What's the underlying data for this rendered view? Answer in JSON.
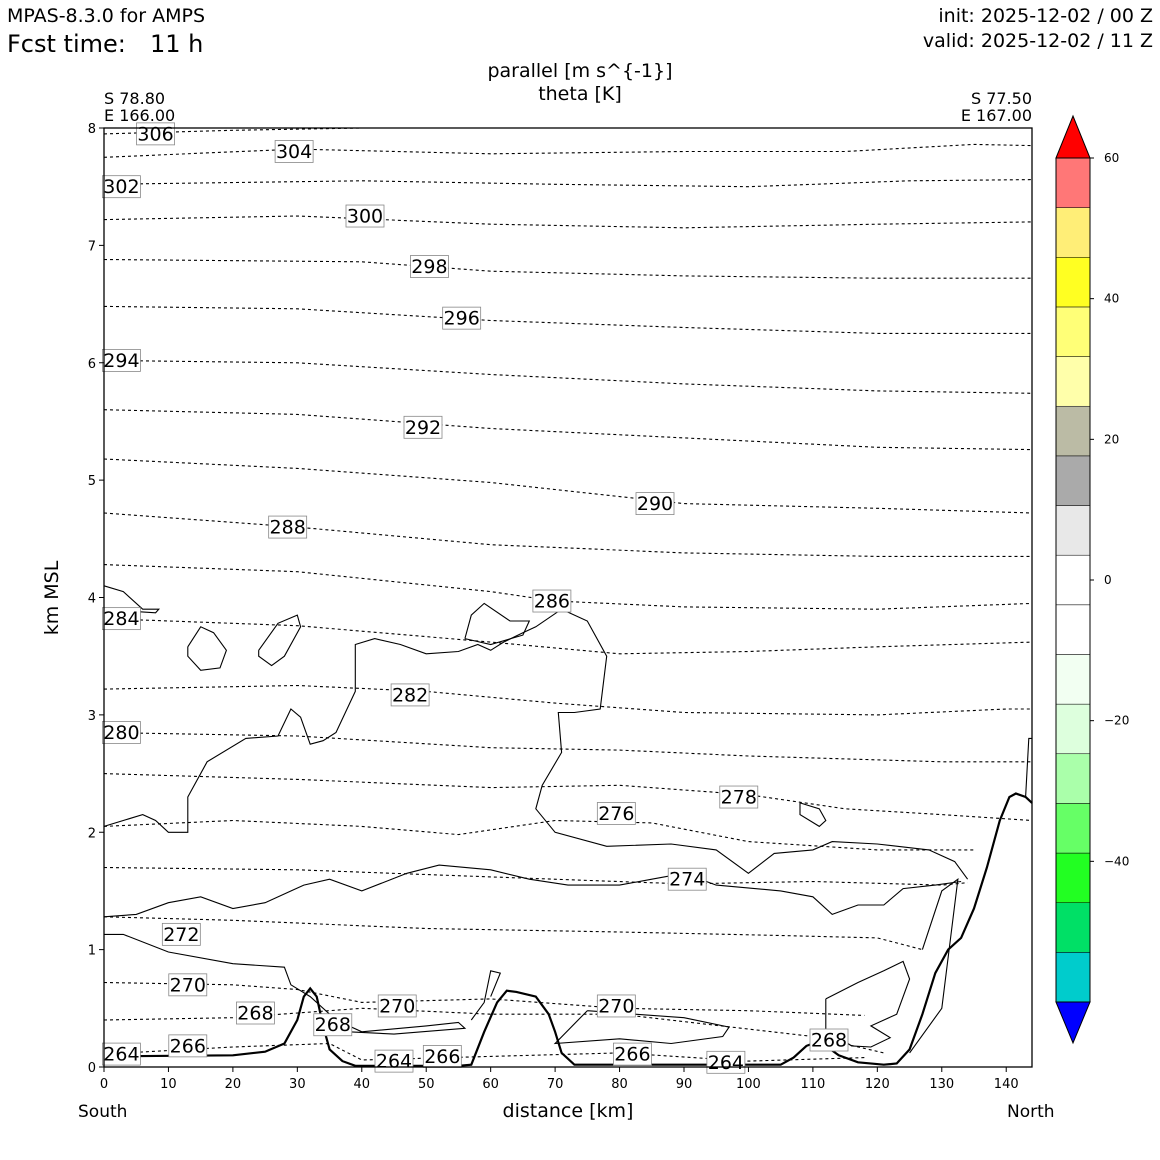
{
  "header": {
    "model": "MPAS-8.3.0 for AMPS",
    "fcst_label": "Fcst time:",
    "fcst_value": "11 h",
    "init": "init: 2025-12-02 / 00 Z",
    "valid": "valid: 2025-12-02 / 11 Z"
  },
  "chart_data": {
    "type": "contour cross-section",
    "title_line1": "parallel [m s^{-1}]",
    "title_line2": "theta [K]",
    "xlabel": "distance [km]",
    "ylabel": "km MSL",
    "xlim": [
      0,
      144
    ],
    "ylim": [
      0,
      8
    ],
    "x_ticks": [
      "0",
      "10",
      "20",
      "30",
      "40",
      "50",
      "60",
      "70",
      "80",
      "90",
      "100",
      "110",
      "120",
      "130",
      "140"
    ],
    "y_ticks": [
      "0",
      "1",
      "2",
      "3",
      "4",
      "5",
      "6",
      "7",
      "8"
    ],
    "endpoints": {
      "left_lat": "S 78.80",
      "left_lon": "E 166.00",
      "right_lat": "S 77.50",
      "right_lon": "E 167.00",
      "left_dir": "South",
      "right_dir": "North"
    },
    "theta_labels": [
      {
        "text": "306",
        "x": 8,
        "y": 7.95
      },
      {
        "text": "304",
        "x": 29.5,
        "y": 7.8
      },
      {
        "text": "302",
        "x": 2.7,
        "y": 7.5
      },
      {
        "text": "300",
        "x": 40.5,
        "y": 7.25
      },
      {
        "text": "298",
        "x": 50.5,
        "y": 6.82
      },
      {
        "text": "296",
        "x": 55.5,
        "y": 6.38
      },
      {
        "text": "294",
        "x": 2.7,
        "y": 6.02
      },
      {
        "text": "292",
        "x": 49.5,
        "y": 5.45
      },
      {
        "text": "290",
        "x": 85.5,
        "y": 4.8
      },
      {
        "text": "288",
        "x": 28.5,
        "y": 4.6
      },
      {
        "text": "286",
        "x": 69.5,
        "y": 3.97
      },
      {
        "text": "284",
        "x": 2.7,
        "y": 3.82
      },
      {
        "text": "282",
        "x": 47.5,
        "y": 3.17
      },
      {
        "text": "280",
        "x": 2.7,
        "y": 2.85
      },
      {
        "text": "278",
        "x": 98.5,
        "y": 2.3
      },
      {
        "text": "276",
        "x": 79.5,
        "y": 2.16
      },
      {
        "text": "274",
        "x": 90.5,
        "y": 1.6
      },
      {
        "text": "272",
        "x": 12,
        "y": 1.13
      },
      {
        "text": "270",
        "x": 13,
        "y": 0.7
      },
      {
        "text": "268",
        "x": 23.5,
        "y": 0.46
      },
      {
        "text": "270",
        "x": 45.5,
        "y": 0.52
      },
      {
        "text": "270",
        "x": 79.5,
        "y": 0.52
      },
      {
        "text": "268",
        "x": 35.5,
        "y": 0.36
      },
      {
        "text": "268",
        "x": 112.5,
        "y": 0.23
      },
      {
        "text": "266",
        "x": 13,
        "y": 0.18
      },
      {
        "text": "264",
        "x": 2.7,
        "y": 0.11
      },
      {
        "text": "264",
        "x": 45,
        "y": 0.05
      },
      {
        "text": "266",
        "x": 52.5,
        "y": 0.09
      },
      {
        "text": "266",
        "x": 82,
        "y": 0.11
      },
      {
        "text": "264",
        "x": 96.5,
        "y": 0.04
      }
    ],
    "colorbar": {
      "ticks": [
        "60",
        "40",
        "20",
        "0",
        "−20",
        "−40"
      ],
      "tick_values": [
        60,
        40,
        20,
        0,
        -20,
        -40
      ],
      "range": [
        -60,
        60
      ],
      "colors": [
        "#0000ff",
        "#00cccc",
        "#00e066",
        "#22ff22",
        "#66ff66",
        "#aaffaa",
        "#ddffdd",
        "#f2fff2",
        "#ffffff",
        "#ffffff",
        "#e8e8e8",
        "#aaaaaa",
        "#bbbba5",
        "#ffffaa",
        "#ffff77",
        "#ffff22",
        "#ffee77",
        "#ff7777",
        "#ff0000"
      ]
    }
  }
}
